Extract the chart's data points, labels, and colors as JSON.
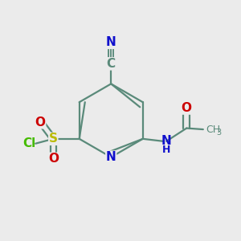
{
  "bg_color": "#ebebeb",
  "bond_color": "#5a8a7a",
  "bond_width": 1.6,
  "atom_colors": {
    "N": "#1010cc",
    "S": "#bbbb00",
    "Cl": "#44bb00",
    "O": "#cc0000",
    "C": "#5a8a7a"
  },
  "font_size": 11,
  "font_size_h": 9
}
